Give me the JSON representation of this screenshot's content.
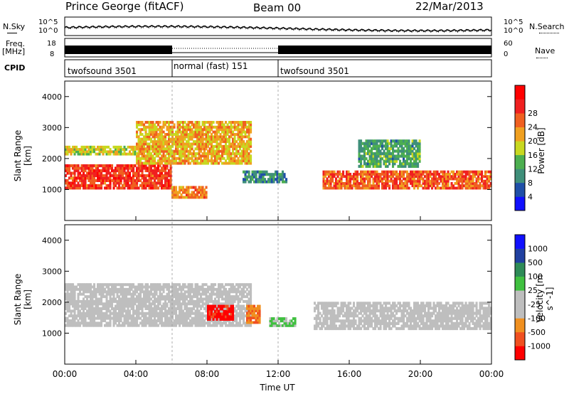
{
  "header": {
    "station": "Prince George (fitACF)",
    "beam": "Beam 00",
    "date": "22/Mar/2013"
  },
  "noise_panel": {
    "left_label": "N.Sky",
    "right_label": "N.Search",
    "left_ticks": [
      "10^5",
      "10^0"
    ],
    "right_ticks": [
      "10^5",
      "10^0"
    ]
  },
  "freq_panel": {
    "left_label_1": "Freq.",
    "left_label_2": "[MHz]",
    "left_ticks": [
      "18",
      "8"
    ],
    "right_label": "Nave",
    "right_ticks": [
      "60",
      "0"
    ]
  },
  "cpid": {
    "label": "CPID",
    "segments": [
      {
        "name": "twofsound 3501",
        "start_hour": 0,
        "end_hour": 6
      },
      {
        "name": "normal (fast) 151",
        "start_hour": 6,
        "end_hour": 12
      },
      {
        "name": "twofsound 3501",
        "start_hour": 12,
        "end_hour": 24
      }
    ]
  },
  "colors": {
    "power": [
      "#1010ff",
      "#1f4fa8",
      "#3f8f7a",
      "#4caf50",
      "#c8d820",
      "#f0a020",
      "#f06020",
      "#f02020",
      "#ff0000"
    ],
    "velocity": [
      "#ff0000",
      "#f05020",
      "#f09020",
      "#bebebe",
      "#bebebe",
      "#40c040",
      "#2e8b57",
      "#2040a0",
      "#1010ff"
    ]
  },
  "chart_data": [
    {
      "type": "heatmap",
      "title": "",
      "ylabel": "Slant Range [km]",
      "yticks": [
        1000,
        2000,
        3000,
        4000
      ],
      "ylim": [
        0,
        4500
      ],
      "xlim": [
        0,
        24
      ],
      "colorbar": {
        "label": "Power [dB]",
        "ticks": [
          "4",
          "8",
          "12",
          "16",
          "20",
          "24",
          "28"
        ]
      },
      "description_bands": [
        {
          "start_hour": 0.0,
          "end_hour": 6.0,
          "range_km": [
            1000,
            1800
          ],
          "power_db": 26
        },
        {
          "start_hour": 0.0,
          "end_hour": 4.0,
          "range_km": [
            2100,
            2400
          ],
          "power_db": 18
        },
        {
          "start_hour": 4.0,
          "end_hour": 10.5,
          "range_km": [
            1800,
            3200
          ],
          "power_db": 20
        },
        {
          "start_hour": 6.0,
          "end_hour": 8.0,
          "range_km": [
            700,
            1100
          ],
          "power_db": 22
        },
        {
          "start_hour": 10.0,
          "end_hour": 12.5,
          "range_km": [
            1200,
            1600
          ],
          "power_db": 10
        },
        {
          "start_hour": 14.5,
          "end_hour": 24.0,
          "range_km": [
            1000,
            1600
          ],
          "power_db": 24
        },
        {
          "start_hour": 16.5,
          "end_hour": 20.0,
          "range_km": [
            1700,
            2600
          ],
          "power_db": 12
        }
      ]
    },
    {
      "type": "heatmap",
      "title": "",
      "ylabel": "Slant Range [km]",
      "yticks": [
        1000,
        2000,
        3000,
        4000
      ],
      "ylim": [
        0,
        4500
      ],
      "xlim": [
        0,
        24
      ],
      "xlabel": "Time UT",
      "xticks": [
        "00:00",
        "04:00",
        "08:00",
        "12:00",
        "16:00",
        "20:00",
        "00:00"
      ],
      "colorbar": {
        "label": "Velocity [m s^-1]",
        "ticks": [
          "-1000",
          "-500",
          "-100",
          "-25",
          "25",
          "100",
          "500",
          "1000"
        ]
      },
      "description_bands": [
        {
          "start_hour": 0.0,
          "end_hour": 10.5,
          "range_km": [
            1200,
            2600
          ],
          "velocity": 0
        },
        {
          "start_hour": 8.0,
          "end_hour": 9.5,
          "range_km": [
            1400,
            1900
          ],
          "velocity": -800
        },
        {
          "start_hour": 10.2,
          "end_hour": 11.0,
          "range_km": [
            1300,
            1900
          ],
          "velocity": -300
        },
        {
          "start_hour": 11.5,
          "end_hour": 13.0,
          "range_km": [
            1200,
            1500
          ],
          "velocity": 60
        },
        {
          "start_hour": 14.0,
          "end_hour": 24.0,
          "range_km": [
            1100,
            2000
          ],
          "velocity": 0
        }
      ]
    }
  ]
}
